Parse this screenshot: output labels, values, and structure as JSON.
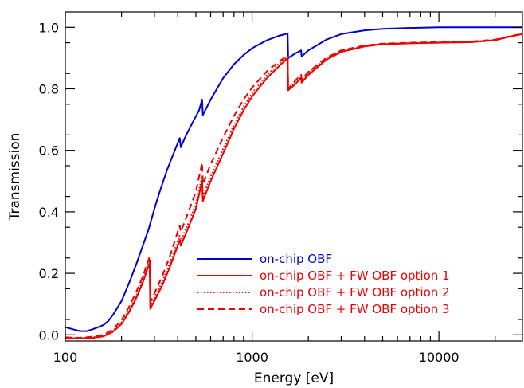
{
  "chart_data": {
    "type": "line",
    "title": "",
    "xlabel": "Energy [eV]",
    "ylabel": "Transmission",
    "xscale": "log",
    "xlim": [
      100,
      28000
    ],
    "ylim": [
      -0.02,
      1.05
    ],
    "x_ticks": [
      100,
      1000,
      10000
    ],
    "x_tick_labels": [
      "100",
      "1000",
      "10000"
    ],
    "y_ticks": [
      0.0,
      0.2,
      0.4,
      0.6,
      0.8,
      1.0
    ],
    "y_tick_labels": [
      "0.0",
      "0.2",
      "0.4",
      "0.6",
      "0.8",
      "1.0"
    ],
    "grid": false,
    "legend_position": "lower-right",
    "series": [
      {
        "name": "on-chip OBF",
        "color": "#0000cc",
        "line_style": "solid",
        "points": [
          [
            100,
            0.025
          ],
          [
            110,
            0.018
          ],
          [
            120,
            0.012
          ],
          [
            130,
            0.012
          ],
          [
            140,
            0.018
          ],
          [
            150,
            0.025
          ],
          [
            160,
            0.032
          ],
          [
            170,
            0.045
          ],
          [
            180,
            0.065
          ],
          [
            200,
            0.11
          ],
          [
            220,
            0.17
          ],
          [
            240,
            0.23
          ],
          [
            260,
            0.29
          ],
          [
            280,
            0.345
          ],
          [
            300,
            0.41
          ],
          [
            320,
            0.465
          ],
          [
            350,
            0.535
          ],
          [
            380,
            0.59
          ],
          [
            410,
            0.64
          ],
          [
            415,
            0.61
          ],
          [
            440,
            0.645
          ],
          [
            480,
            0.69
          ],
          [
            520,
            0.73
          ],
          [
            540,
            0.765
          ],
          [
            545,
            0.715
          ],
          [
            600,
            0.765
          ],
          [
            700,
            0.835
          ],
          [
            800,
            0.88
          ],
          [
            900,
            0.91
          ],
          [
            1000,
            0.932
          ],
          [
            1200,
            0.958
          ],
          [
            1400,
            0.973
          ],
          [
            1550,
            0.98
          ],
          [
            1560,
            0.9
          ],
          [
            1700,
            0.915
          ],
          [
            1830,
            0.925
          ],
          [
            1840,
            0.905
          ],
          [
            2000,
            0.925
          ],
          [
            2500,
            0.96
          ],
          [
            3000,
            0.978
          ],
          [
            4000,
            0.99
          ],
          [
            5000,
            0.995
          ],
          [
            7000,
            0.998
          ],
          [
            10000,
            1.0
          ],
          [
            20000,
            1.0
          ],
          [
            28000,
            1.0
          ]
        ]
      },
      {
        "name": "on-chip OBF + FW OBF option 1",
        "color": "#ee0000",
        "line_style": "solid",
        "points": [
          [
            100,
            -0.01
          ],
          [
            120,
            -0.012
          ],
          [
            140,
            -0.01
          ],
          [
            160,
            -0.005
          ],
          [
            180,
            0.01
          ],
          [
            200,
            0.035
          ],
          [
            220,
            0.075
          ],
          [
            240,
            0.12
          ],
          [
            260,
            0.17
          ],
          [
            283,
            0.235
          ],
          [
            285,
            0.085
          ],
          [
            300,
            0.11
          ],
          [
            330,
            0.16
          ],
          [
            360,
            0.215
          ],
          [
            400,
            0.29
          ],
          [
            410,
            0.31
          ],
          [
            415,
            0.29
          ],
          [
            450,
            0.34
          ],
          [
            500,
            0.41
          ],
          [
            540,
            0.5
          ],
          [
            545,
            0.435
          ],
          [
            600,
            0.5
          ],
          [
            700,
            0.59
          ],
          [
            800,
            0.67
          ],
          [
            900,
            0.73
          ],
          [
            1000,
            0.775
          ],
          [
            1200,
            0.835
          ],
          [
            1400,
            0.875
          ],
          [
            1550,
            0.9
          ],
          [
            1560,
            0.795
          ],
          [
            1700,
            0.815
          ],
          [
            1830,
            0.835
          ],
          [
            1840,
            0.82
          ],
          [
            2000,
            0.845
          ],
          [
            2500,
            0.895
          ],
          [
            3000,
            0.92
          ],
          [
            4000,
            0.938
          ],
          [
            5000,
            0.945
          ],
          [
            7000,
            0.948
          ],
          [
            10000,
            0.95
          ],
          [
            15000,
            0.952
          ],
          [
            20000,
            0.958
          ],
          [
            24000,
            0.97
          ],
          [
            28000,
            0.978
          ]
        ]
      },
      {
        "name": "on-chip OBF + FW OBF option 2",
        "color": "#ee0000",
        "line_style": "dotted",
        "points": [
          [
            100,
            -0.01
          ],
          [
            120,
            -0.011
          ],
          [
            140,
            -0.008
          ],
          [
            160,
            -0.003
          ],
          [
            180,
            0.013
          ],
          [
            200,
            0.04
          ],
          [
            220,
            0.08
          ],
          [
            240,
            0.127
          ],
          [
            260,
            0.178
          ],
          [
            283,
            0.245
          ],
          [
            285,
            0.095
          ],
          [
            300,
            0.12
          ],
          [
            330,
            0.172
          ],
          [
            360,
            0.228
          ],
          [
            400,
            0.305
          ],
          [
            410,
            0.325
          ],
          [
            415,
            0.305
          ],
          [
            450,
            0.355
          ],
          [
            500,
            0.425
          ],
          [
            540,
            0.515
          ],
          [
            545,
            0.45
          ],
          [
            600,
            0.515
          ],
          [
            700,
            0.605
          ],
          [
            800,
            0.683
          ],
          [
            900,
            0.742
          ],
          [
            1000,
            0.786
          ],
          [
            1200,
            0.845
          ],
          [
            1400,
            0.883
          ],
          [
            1550,
            0.905
          ],
          [
            1560,
            0.8
          ],
          [
            1700,
            0.823
          ],
          [
            1830,
            0.843
          ],
          [
            1840,
            0.828
          ],
          [
            2000,
            0.852
          ],
          [
            2500,
            0.899
          ],
          [
            3000,
            0.923
          ],
          [
            4000,
            0.94
          ],
          [
            5000,
            0.946
          ],
          [
            7000,
            0.949
          ],
          [
            10000,
            0.951
          ],
          [
            15000,
            0.953
          ],
          [
            20000,
            0.959
          ],
          [
            24000,
            0.97
          ],
          [
            28000,
            0.978
          ]
        ]
      },
      {
        "name": "on-chip OBF + FW OBF option 3",
        "color": "#ee0000",
        "line_style": "dashed",
        "points": [
          [
            100,
            -0.008
          ],
          [
            120,
            -0.01
          ],
          [
            140,
            -0.006
          ],
          [
            160,
            0.0
          ],
          [
            180,
            0.018
          ],
          [
            200,
            0.048
          ],
          [
            220,
            0.092
          ],
          [
            240,
            0.14
          ],
          [
            260,
            0.19
          ],
          [
            283,
            0.255
          ],
          [
            285,
            0.105
          ],
          [
            300,
            0.135
          ],
          [
            330,
            0.19
          ],
          [
            360,
            0.25
          ],
          [
            400,
            0.335
          ],
          [
            410,
            0.355
          ],
          [
            415,
            0.335
          ],
          [
            450,
            0.39
          ],
          [
            500,
            0.465
          ],
          [
            540,
            0.56
          ],
          [
            545,
            0.49
          ],
          [
            600,
            0.555
          ],
          [
            700,
            0.642
          ],
          [
            800,
            0.712
          ],
          [
            900,
            0.765
          ],
          [
            1000,
            0.804
          ],
          [
            1200,
            0.857
          ],
          [
            1400,
            0.89
          ],
          [
            1550,
            0.908
          ],
          [
            1560,
            0.8
          ],
          [
            1700,
            0.826
          ],
          [
            1830,
            0.846
          ],
          [
            1840,
            0.83
          ],
          [
            2000,
            0.855
          ],
          [
            2500,
            0.901
          ],
          [
            3000,
            0.925
          ],
          [
            4000,
            0.941
          ],
          [
            5000,
            0.947
          ],
          [
            7000,
            0.95
          ],
          [
            10000,
            0.952
          ],
          [
            15000,
            0.954
          ],
          [
            20000,
            0.96
          ],
          [
            24000,
            0.971
          ],
          [
            28000,
            0.979
          ]
        ]
      }
    ]
  }
}
